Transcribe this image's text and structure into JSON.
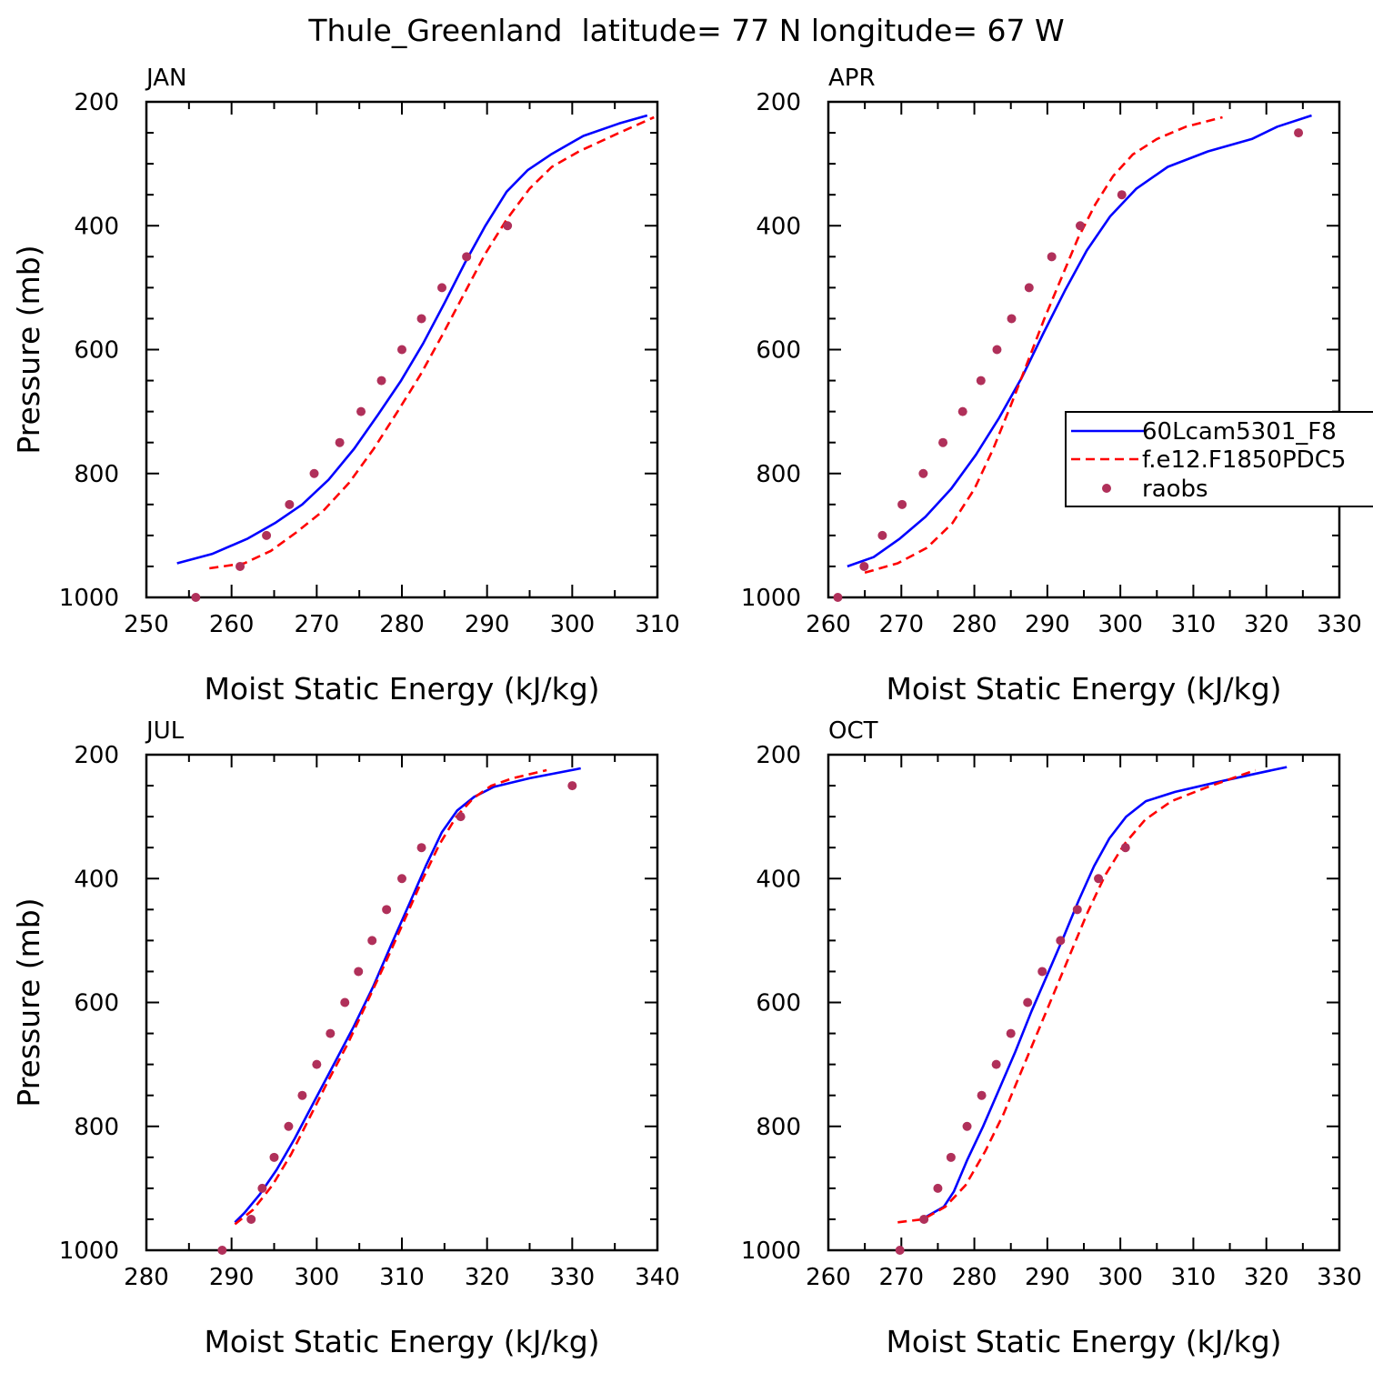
{
  "title": "Thule_Greenland  latitude= 77 N longitude= 67 W",
  "legend": {
    "entries": [
      "60Lcam5301_F8",
      "f.e12.F1850PDC5",
      "raobs"
    ]
  },
  "colors": {
    "series1": "#0000ff",
    "series2": "#ff0000",
    "raobs": "#b0305a"
  },
  "chart_data": [
    {
      "type": "line",
      "panel_label": "JAN",
      "xlabel": "Moist Static Energy (kJ/kg)",
      "ylabel": "Pressure (mb)",
      "xlim": [
        250,
        310
      ],
      "ylim": [
        200,
        1000
      ],
      "y_inverted": true,
      "xticks": [
        250,
        260,
        270,
        280,
        290,
        300,
        310
      ],
      "yticks": [
        200,
        400,
        600,
        800,
        1000
      ],
      "series": [
        {
          "name": "60Lcam5301_F8",
          "style": "solid",
          "x": [
            253.6,
            257.7,
            261.9,
            265.1,
            268.3,
            271.4,
            274.4,
            277.2,
            279.9,
            282.5,
            285.0,
            287.4,
            289.8,
            292.3,
            294.8,
            297.5,
            301.3,
            305.5,
            308.8
          ],
          "y": [
            945,
            930,
            905,
            880,
            850,
            810,
            760,
            705,
            650,
            590,
            525,
            460,
            400,
            345,
            310,
            285,
            255,
            235,
            222
          ]
        },
        {
          "name": "f.e12.F1850PDC5",
          "style": "dashed",
          "x": [
            257.4,
            261.5,
            264.6,
            267.6,
            270.8,
            273.8,
            276.7,
            279.5,
            282.2,
            284.8,
            287.3,
            289.8,
            292.3,
            295.0,
            297.6,
            300.8,
            305.5,
            309.6
          ],
          "y": [
            953,
            945,
            925,
            895,
            860,
            815,
            760,
            700,
            640,
            575,
            510,
            445,
            390,
            340,
            305,
            280,
            250,
            225
          ]
        }
      ],
      "raobs": {
        "x": [
          255.8,
          261.0,
          264.1,
          266.8,
          269.7,
          272.7,
          275.2,
          277.6,
          280.0,
          282.3,
          284.7,
          287.6,
          292.4
        ],
        "y": [
          1000,
          950,
          900,
          850,
          800,
          750,
          700,
          650,
          600,
          550,
          500,
          450,
          400
        ]
      }
    },
    {
      "type": "line",
      "panel_label": "APR",
      "xlabel": "Moist Static Energy (kJ/kg)",
      "ylabel": "",
      "xlim": [
        260,
        330
      ],
      "ylim": [
        200,
        1000
      ],
      "y_inverted": true,
      "xticks": [
        260,
        270,
        280,
        290,
        300,
        310,
        320,
        330
      ],
      "yticks": [
        200,
        400,
        600,
        800,
        1000
      ],
      "series": [
        {
          "name": "60Lcam5301_F8",
          "style": "solid",
          "x": [
            262.6,
            266.2,
            269.8,
            273.3,
            276.8,
            280.2,
            283.4,
            286.5,
            289.4,
            292.4,
            295.4,
            298.6,
            302.2,
            306.5,
            312.0,
            318.0,
            321.5,
            326.2
          ],
          "y": [
            950,
            935,
            905,
            870,
            825,
            770,
            710,
            645,
            575,
            505,
            440,
            385,
            340,
            305,
            280,
            260,
            240,
            222
          ]
        },
        {
          "name": "f.e12.F1850PDC5",
          "style": "dashed",
          "x": [
            265.0,
            269.5,
            273.5,
            277.0,
            280.0,
            282.6,
            285.0,
            287.3,
            289.6,
            291.9,
            294.2,
            296.6,
            299.0,
            301.7,
            305.0,
            309.0,
            314.0
          ],
          "y": [
            960,
            945,
            920,
            880,
            825,
            760,
            690,
            620,
            550,
            485,
            420,
            365,
            320,
            285,
            260,
            240,
            225
          ]
        }
      ],
      "raobs": {
        "x": [
          261.3,
          264.9,
          267.4,
          270.1,
          273.0,
          275.7,
          278.4,
          280.9,
          283.1,
          285.1,
          287.5,
          290.6,
          294.5,
          300.2,
          324.4
        ],
        "y": [
          1000,
          950,
          900,
          850,
          800,
          750,
          700,
          650,
          600,
          550,
          500,
          450,
          400,
          350,
          250
        ]
      }
    },
    {
      "type": "line",
      "panel_label": "JUL",
      "xlabel": "Moist Static Energy (kJ/kg)",
      "ylabel": "Pressure (mb)",
      "xlim": [
        280,
        340
      ],
      "ylim": [
        200,
        1000
      ],
      "y_inverted": true,
      "xticks": [
        280,
        290,
        300,
        310,
        320,
        330,
        340
      ],
      "yticks": [
        200,
        400,
        600,
        800,
        1000
      ],
      "series": [
        {
          "name": "60Lcam5301_F8",
          "style": "solid",
          "x": [
            290.4,
            291.5,
            293.3,
            295.3,
            297.4,
            299.7,
            302.0,
            304.3,
            306.6,
            308.8,
            310.9,
            312.8,
            314.7,
            316.5,
            318.5,
            320.8,
            325.0,
            331.0
          ],
          "y": [
            955,
            940,
            910,
            870,
            820,
            760,
            700,
            640,
            575,
            505,
            440,
            380,
            325,
            290,
            268,
            252,
            238,
            222
          ]
        },
        {
          "name": "f.e12.F1850PDC5",
          "style": "dashed",
          "x": [
            290.4,
            292.5,
            294.8,
            297.0,
            299.2,
            301.4,
            303.7,
            305.9,
            308.1,
            310.2,
            312.3,
            314.4,
            316.4,
            318.4,
            320.5,
            323.0,
            327.0
          ],
          "y": [
            958,
            935,
            895,
            845,
            785,
            725,
            665,
            600,
            535,
            470,
            405,
            345,
            300,
            270,
            250,
            238,
            225
          ]
        }
      ],
      "raobs": {
        "x": [
          288.9,
          292.3,
          293.6,
          295.0,
          296.7,
          298.3,
          300.0,
          301.6,
          303.3,
          304.9,
          306.5,
          308.2,
          310.0,
          312.3,
          316.9,
          330.0
        ],
        "y": [
          1000,
          950,
          900,
          850,
          800,
          750,
          700,
          650,
          600,
          550,
          500,
          450,
          400,
          350,
          300,
          250
        ]
      }
    },
    {
      "type": "line",
      "panel_label": "OCT",
      "xlabel": "Moist Static Energy (kJ/kg)",
      "ylabel": "",
      "xlim": [
        260,
        330
      ],
      "ylim": [
        200,
        1000
      ],
      "y_inverted": true,
      "xticks": [
        260,
        270,
        280,
        290,
        300,
        310,
        320,
        330
      ],
      "yticks": [
        200,
        400,
        600,
        800,
        1000
      ],
      "series": [
        {
          "name": "60Lcam5301_F8",
          "style": "solid",
          "x": [
            272.8,
            275.8,
            277.2,
            279.0,
            281.2,
            283.4,
            285.6,
            287.8,
            290.0,
            292.2,
            294.3,
            296.4,
            298.5,
            300.8,
            303.5,
            307.5,
            313.0,
            318.0,
            322.8
          ],
          "y": [
            950,
            930,
            905,
            855,
            800,
            740,
            680,
            615,
            555,
            495,
            435,
            380,
            335,
            300,
            275,
            260,
            245,
            232,
            220
          ]
        },
        {
          "name": "f.e12.F1850PDC5",
          "style": "dashed",
          "x": [
            269.5,
            273.0,
            276.0,
            278.8,
            281.5,
            284.0,
            286.3,
            288.6,
            290.9,
            293.2,
            295.5,
            297.9,
            300.5,
            303.4,
            307.0,
            312.0,
            318.5
          ],
          "y": [
            955,
            950,
            930,
            895,
            840,
            780,
            715,
            650,
            585,
            520,
            455,
            395,
            345,
            305,
            275,
            252,
            225
          ]
        }
      ],
      "raobs": {
        "x": [
          269.8,
          273.1,
          275.0,
          276.8,
          279.0,
          281.0,
          283.0,
          285.0,
          287.3,
          289.3,
          291.8,
          294.1,
          297.0,
          300.7
        ],
        "y": [
          1000,
          950,
          900,
          850,
          800,
          750,
          700,
          650,
          600,
          550,
          500,
          450,
          400,
          350
        ]
      }
    }
  ]
}
